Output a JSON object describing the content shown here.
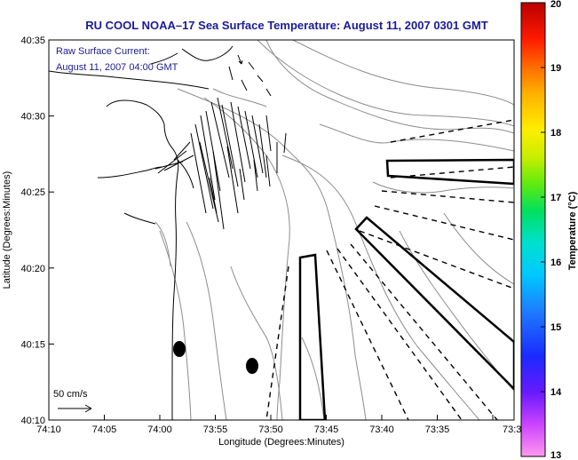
{
  "title": "RU COOL  NOAA–17  Sea Surface Temperature:  August 11, 2007 0301 GMT",
  "legend": {
    "line1": "Raw Surface Current:",
    "line2": "August 11, 2007 04:00 GMT",
    "scale_label": "50 cm/s"
  },
  "axes": {
    "xlabel": "Longitude (Degrees:Minutes)",
    "ylabel": "Latitude (Degrees:Minutes)",
    "x_ticks": [
      "74:10",
      "74:05",
      "74:00",
      "73:55",
      "73:50",
      "73:45",
      "73:40",
      "73:35",
      "73:3"
    ],
    "y_ticks": [
      "40:35",
      "40:30",
      "40:25",
      "40:20",
      "40:15",
      "40:10"
    ]
  },
  "colorbar": {
    "label": "Temperature (°C)",
    "ticks": [
      "20",
      "19",
      "18",
      "17",
      "16",
      "15",
      "14",
      "13"
    ],
    "min": 13,
    "max": 20
  },
  "colors": {
    "title": "#1a1a9a",
    "contour": "#8c8c8c",
    "coast": "#000000",
    "vector": "#000000"
  }
}
